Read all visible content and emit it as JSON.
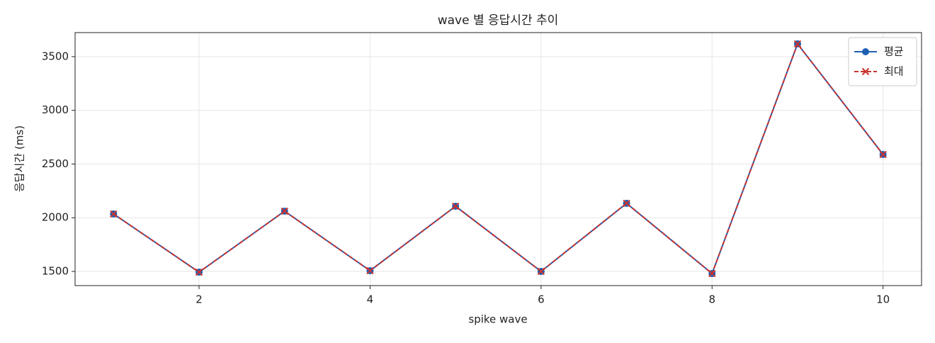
{
  "chart_data": {
    "type": "line",
    "title": "wave 별 응답시간 추이",
    "x_label": "spike wave",
    "y_label": "응답시간 (ms)",
    "x": [
      1,
      2,
      3,
      4,
      5,
      6,
      7,
      8,
      9,
      10
    ],
    "series": [
      {
        "name": "평균",
        "color": "#1f5fb4",
        "marker": "circle",
        "line_style": "solid",
        "values": [
          2035,
          1493,
          2061,
          1507,
          2107,
          1500,
          2134,
          1480,
          3619,
          2589
        ]
      },
      {
        "name": "최대",
        "color": "#c8332f",
        "marker": "x",
        "line_style": "dashed",
        "values": [
          2035,
          1493,
          2061,
          1507,
          2107,
          1500,
          2134,
          1480,
          3619,
          2589
        ]
      }
    ],
    "xlim": [
      0.55,
      10.45
    ],
    "xticks": [
      2,
      4,
      6,
      8,
      10
    ],
    "ylim": [
      1368,
      3724
    ],
    "yticks": [
      1500,
      2000,
      2500,
      3000,
      3500
    ],
    "grid": true,
    "legend": "upper right"
  }
}
